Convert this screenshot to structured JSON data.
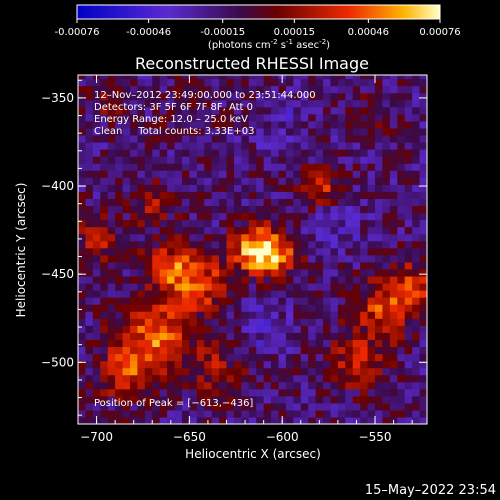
{
  "colorbar": {
    "ticks": [
      "-0.00076",
      "-0.00046",
      "-0.00015",
      "0.00015",
      "0.00046",
      "0.00076"
    ],
    "unit_parts": [
      "(photons cm",
      "-2",
      " s",
      "-1",
      " asec",
      "-2",
      ")"
    ]
  },
  "footer": {
    "timestamp": "15–May–2022 23:54"
  },
  "chart_data": {
    "type": "heatmap",
    "title": "Reconstructed RHESSI Image",
    "xlabel": "Heliocentric X (arcsec)",
    "ylabel": "Heliocentric Y (arcsec)",
    "xlim": [
      -710,
      -522
    ],
    "ylim": [
      -535,
      -337
    ],
    "x_ticks": [
      -700,
      -650,
      -600,
      -550
    ],
    "y_ticks": [
      -350,
      -400,
      -450,
      -500
    ],
    "x_tick_labels": [
      "−700",
      "−650",
      "−600",
      "−550"
    ],
    "y_tick_labels": [
      "−350",
      "−400",
      "−450",
      "−500"
    ],
    "color_range": [
      -0.00076,
      0.00076
    ],
    "annotations": [
      "12–Nov–2012 23:49:00.000 to 23:51:44.000",
      "Detectors: 3F 5F 6F 7F 8F, Att 0",
      "Energy Range: 12.0 – 25.0 keV",
      "Clean     Total counts: 3.33E+03"
    ],
    "peak_label": "Position of Peak = [−613,−436]",
    "peak": [
      -613,
      -436
    ],
    "sources": [
      {
        "x": -613,
        "y": -436,
        "amp": 1.0,
        "sigma": 9
      },
      {
        "x": -645,
        "y": -455,
        "amp": 0.55,
        "sigma": 12
      },
      {
        "x": -668,
        "y": -485,
        "amp": 0.65,
        "sigma": 14
      },
      {
        "x": -685,
        "y": -505,
        "amp": 0.55,
        "sigma": 10
      },
      {
        "x": -660,
        "y": -445,
        "amp": 0.5,
        "sigma": 10
      },
      {
        "x": -670,
        "y": -410,
        "amp": 0.4,
        "sigma": 8
      },
      {
        "x": -580,
        "y": -400,
        "amp": 0.55,
        "sigma": 7
      },
      {
        "x": -600,
        "y": -440,
        "amp": 0.4,
        "sigma": 8
      },
      {
        "x": -545,
        "y": -470,
        "amp": 0.55,
        "sigma": 12
      },
      {
        "x": -530,
        "y": -455,
        "amp": 0.45,
        "sigma": 9
      },
      {
        "x": -560,
        "y": -500,
        "amp": 0.5,
        "sigma": 10
      },
      {
        "x": -635,
        "y": -505,
        "amp": 0.35,
        "sigma": 10
      },
      {
        "x": -700,
        "y": -430,
        "amp": 0.4,
        "sigma": 9
      },
      {
        "x": -695,
        "y": -350,
        "amp": 0.25,
        "sigma": 8
      },
      {
        "x": -555,
        "y": -360,
        "amp": 0.2,
        "sigma": 8
      },
      {
        "x": -650,
        "y": -360,
        "amp": 0.15,
        "sigma": 10
      },
      {
        "x": -600,
        "y": -365,
        "amp": -0.15,
        "sigma": 12
      },
      {
        "x": -570,
        "y": -425,
        "amp": -0.2,
        "sigma": 10
      },
      {
        "x": -610,
        "y": -480,
        "amp": -0.2,
        "sigma": 10
      }
    ]
  }
}
